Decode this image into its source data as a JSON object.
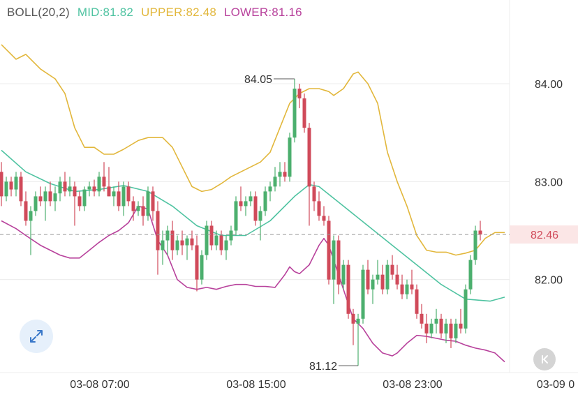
{
  "legend": {
    "name": "BOLL(20,2)",
    "mid_label": "MID:81.82",
    "upper_label": "UPPER:82.48",
    "lower_label": "LOWER:81.16"
  },
  "colors": {
    "up": "#4caf6e",
    "down": "#d04a5a",
    "mid": "#4fc3a1",
    "upper": "#e2b73c",
    "lower": "#b8429c",
    "grid": "#ececec",
    "axis_text": "#333333",
    "price_tag_bg": "#fbe6e6",
    "price_tag_text": "#d04a5a"
  },
  "y_axis": {
    "ticks": [
      "84.00",
      "83.00",
      "82.00"
    ]
  },
  "x_axis": {
    "ticks": [
      "03-08 07:00",
      "03-08 15:00",
      "03-08 23:00",
      "03-09 0"
    ]
  },
  "current_price": "82.46",
  "annotations": {
    "high": "84.05",
    "low": "81.12"
  },
  "chart_data": {
    "type": "candlestick",
    "title": "",
    "legend": [
      "BOLL(20,2)",
      "MID:81.82",
      "UPPER:82.48",
      "LOWER:81.16"
    ],
    "x_ticks": [
      "03-08 07:00",
      "03-08 15:00",
      "03-08 23:00",
      "03-09 0"
    ],
    "y_ticks": [
      84.0,
      83.0,
      82.0
    ],
    "ylim": [
      81.05,
      84.57
    ],
    "current_price": 82.46,
    "high_marker": 84.05,
    "low_marker": 81.12,
    "candles": [
      [
        83.1,
        83.2,
        82.75,
        82.85
      ],
      [
        82.85,
        83.05,
        82.8,
        83.0
      ],
      [
        83.0,
        83.05,
        82.85,
        82.92
      ],
      [
        82.92,
        83.1,
        82.85,
        83.05
      ],
      [
        83.05,
        83.1,
        82.75,
        82.8
      ],
      [
        82.8,
        82.9,
        82.55,
        82.6
      ],
      [
        82.6,
        82.75,
        82.25,
        82.7
      ],
      [
        82.7,
        82.9,
        82.65,
        82.85
      ],
      [
        82.85,
        82.95,
        82.75,
        82.8
      ],
      [
        82.8,
        82.95,
        82.6,
        82.9
      ],
      [
        82.9,
        83.0,
        82.75,
        82.8
      ],
      [
        82.8,
        82.95,
        82.7,
        82.88
      ],
      [
        82.88,
        83.05,
        82.8,
        83.0
      ],
      [
        83.0,
        83.1,
        82.85,
        82.9
      ],
      [
        82.9,
        83.05,
        82.85,
        82.95
      ],
      [
        82.95,
        83.0,
        82.55,
        82.85
      ],
      [
        82.85,
        82.9,
        82.7,
        82.75
      ],
      [
        82.75,
        82.95,
        82.7,
        82.92
      ],
      [
        82.92,
        83.0,
        82.85,
        82.95
      ],
      [
        82.95,
        83.02,
        82.85,
        82.9
      ],
      [
        82.9,
        83.1,
        82.85,
        83.05
      ],
      [
        83.05,
        83.2,
        82.9,
        82.95
      ],
      [
        82.95,
        83.15,
        82.85,
        82.85
      ],
      [
        82.85,
        82.95,
        82.75,
        82.9
      ],
      [
        82.9,
        83.0,
        82.7,
        82.75
      ],
      [
        82.75,
        83.0,
        82.65,
        82.95
      ],
      [
        82.95,
        83.0,
        82.75,
        82.8
      ],
      [
        82.8,
        82.85,
        82.6,
        82.7
      ],
      [
        82.7,
        82.8,
        82.65,
        82.75
      ],
      [
        82.75,
        82.85,
        82.55,
        82.65
      ],
      [
        82.65,
        82.95,
        82.6,
        82.9
      ],
      [
        82.9,
        82.95,
        82.6,
        82.7
      ],
      [
        82.7,
        82.8,
        82.05,
        82.3
      ],
      [
        82.3,
        82.5,
        82.15,
        82.4
      ],
      [
        82.4,
        82.55,
        82.25,
        82.5
      ],
      [
        82.5,
        82.6,
        82.2,
        82.3
      ],
      [
        82.3,
        82.45,
        82.25,
        82.4
      ],
      [
        82.4,
        82.5,
        82.25,
        82.35
      ],
      [
        82.35,
        82.45,
        82.2,
        82.42
      ],
      [
        82.42,
        82.5,
        82.3,
        82.35
      ],
      [
        82.35,
        82.45,
        81.88,
        82.0
      ],
      [
        82.0,
        82.3,
        81.95,
        82.25
      ],
      [
        82.25,
        82.6,
        82.2,
        82.55
      ],
      [
        82.55,
        82.6,
        82.3,
        82.35
      ],
      [
        82.35,
        82.5,
        82.3,
        82.45
      ],
      [
        82.45,
        82.5,
        82.25,
        82.3
      ],
      [
        82.3,
        82.45,
        82.2,
        82.4
      ],
      [
        82.4,
        82.55,
        82.35,
        82.5
      ],
      [
        82.5,
        82.85,
        82.45,
        82.8
      ],
      [
        82.8,
        82.95,
        82.7,
        82.75
      ],
      [
        82.75,
        82.85,
        82.65,
        82.8
      ],
      [
        82.8,
        82.9,
        82.75,
        82.85
      ],
      [
        82.85,
        82.9,
        82.55,
        82.6
      ],
      [
        82.6,
        82.75,
        82.4,
        82.7
      ],
      [
        82.7,
        82.95,
        82.65,
        82.9
      ],
      [
        82.9,
        83.0,
        82.8,
        82.95
      ],
      [
        82.95,
        83.15,
        82.9,
        83.05
      ],
      [
        83.05,
        83.2,
        82.95,
        83.1
      ],
      [
        83.1,
        83.2,
        83.0,
        83.05
      ],
      [
        83.05,
        83.5,
        83.0,
        83.45
      ],
      [
        83.45,
        84.05,
        83.4,
        83.95
      ],
      [
        83.95,
        84.0,
        83.75,
        83.85
      ],
      [
        83.85,
        83.9,
        83.5,
        83.55
      ],
      [
        83.55,
        83.6,
        82.55,
        82.95
      ],
      [
        82.95,
        83.0,
        82.7,
        82.8
      ],
      [
        82.8,
        82.9,
        82.6,
        82.65
      ],
      [
        82.65,
        82.75,
        82.55,
        82.6
      ],
      [
        82.6,
        82.65,
        81.95,
        82.0
      ],
      [
        82.0,
        82.45,
        81.75,
        82.4
      ],
      [
        82.4,
        82.45,
        81.85,
        81.95
      ],
      [
        81.95,
        82.2,
        81.9,
        82.15
      ],
      [
        82.15,
        82.2,
        81.6,
        81.65
      ],
      [
        81.65,
        81.7,
        81.33,
        81.55
      ],
      [
        81.55,
        81.65,
        81.12,
        81.6
      ],
      [
        81.6,
        82.15,
        81.55,
        82.1
      ],
      [
        82.1,
        82.2,
        81.85,
        81.9
      ],
      [
        81.9,
        82.05,
        81.75,
        82.0
      ],
      [
        82.0,
        82.2,
        81.95,
        82.05
      ],
      [
        82.05,
        82.15,
        81.85,
        81.9
      ],
      [
        81.9,
        82.2,
        81.85,
        82.15
      ],
      [
        82.15,
        82.25,
        82.0,
        82.05
      ],
      [
        82.05,
        82.15,
        81.9,
        81.95
      ],
      [
        81.95,
        82.05,
        81.8,
        81.85
      ],
      [
        81.85,
        82.0,
        81.8,
        81.95
      ],
      [
        81.95,
        82.1,
        81.85,
        81.9
      ],
      [
        81.9,
        81.95,
        81.6,
        81.65
      ],
      [
        81.65,
        81.75,
        81.5,
        81.55
      ],
      [
        81.55,
        81.65,
        81.35,
        81.45
      ],
      [
        81.45,
        81.6,
        81.4,
        81.55
      ],
      [
        81.55,
        81.7,
        81.45,
        81.6
      ],
      [
        81.6,
        81.65,
        81.4,
        81.45
      ],
      [
        81.45,
        81.6,
        81.35,
        81.55
      ],
      [
        81.55,
        81.6,
        81.3,
        81.4
      ],
      [
        81.4,
        81.6,
        81.35,
        81.55
      ],
      [
        81.55,
        81.7,
        81.45,
        81.5
      ],
      [
        81.5,
        81.95,
        81.45,
        81.9
      ],
      [
        81.9,
        82.25,
        81.85,
        82.2
      ],
      [
        82.2,
        82.55,
        82.15,
        82.5
      ],
      [
        82.5,
        82.6,
        82.4,
        82.46
      ]
    ],
    "mid": [
      [
        0,
        83.32
      ],
      [
        5,
        83.1
      ],
      [
        10,
        82.98
      ],
      [
        15,
        82.9
      ],
      [
        20,
        82.92
      ],
      [
        25,
        82.96
      ],
      [
        30,
        82.9
      ],
      [
        35,
        82.75
      ],
      [
        40,
        82.55
      ],
      [
        45,
        82.45
      ],
      [
        50,
        82.45
      ],
      [
        55,
        82.6
      ],
      [
        60,
        82.85
      ],
      [
        63,
        82.97
      ],
      [
        65,
        82.95
      ],
      [
        70,
        82.75
      ],
      [
        75,
        82.55
      ],
      [
        80,
        82.35
      ],
      [
        85,
        82.15
      ],
      [
        90,
        81.95
      ],
      [
        95,
        81.8
      ],
      [
        100,
        81.78
      ],
      [
        103,
        81.82
      ]
    ],
    "upper": [
      [
        0,
        84.4
      ],
      [
        3,
        84.25
      ],
      [
        5,
        84.3
      ],
      [
        8,
        84.15
      ],
      [
        11,
        84.05
      ],
      [
        13,
        83.9
      ],
      [
        15,
        83.55
      ],
      [
        17,
        83.35
      ],
      [
        19,
        83.35
      ],
      [
        21,
        83.28
      ],
      [
        23,
        83.28
      ],
      [
        25,
        83.33
      ],
      [
        28,
        83.42
      ],
      [
        30,
        83.45
      ],
      [
        33,
        83.45
      ],
      [
        35,
        83.35
      ],
      [
        37,
        83.15
      ],
      [
        39,
        82.95
      ],
      [
        41,
        82.9
      ],
      [
        43,
        82.92
      ],
      [
        45,
        82.98
      ],
      [
        47,
        83.05
      ],
      [
        49,
        83.1
      ],
      [
        51,
        83.15
      ],
      [
        53,
        83.2
      ],
      [
        55,
        83.3
      ],
      [
        57,
        83.55
      ],
      [
        59,
        83.8
      ],
      [
        61,
        83.9
      ],
      [
        63,
        83.95
      ],
      [
        65,
        83.95
      ],
      [
        67,
        83.92
      ],
      [
        68,
        83.88
      ],
      [
        70,
        83.95
      ],
      [
        72,
        84.1
      ],
      [
        73,
        84.12
      ],
      [
        75,
        84.0
      ],
      [
        77,
        83.8
      ],
      [
        79,
        83.3
      ],
      [
        81,
        83.0
      ],
      [
        83,
        82.75
      ],
      [
        85,
        82.45
      ],
      [
        87,
        82.3
      ],
      [
        89,
        82.28
      ],
      [
        91,
        82.28
      ],
      [
        93,
        82.25
      ],
      [
        95,
        82.27
      ],
      [
        97,
        82.3
      ],
      [
        99,
        82.42
      ],
      [
        101,
        82.48
      ],
      [
        103,
        82.48
      ]
    ],
    "lower": [
      [
        0,
        82.6
      ],
      [
        3,
        82.52
      ],
      [
        5,
        82.45
      ],
      [
        8,
        82.35
      ],
      [
        10,
        82.3
      ],
      [
        12,
        82.25
      ],
      [
        14,
        82.22
      ],
      [
        16,
        82.22
      ],
      [
        18,
        82.3
      ],
      [
        20,
        82.38
      ],
      [
        22,
        82.45
      ],
      [
        24,
        82.5
      ],
      [
        26,
        82.58
      ],
      [
        28,
        82.75
      ],
      [
        30,
        82.72
      ],
      [
        32,
        82.4
      ],
      [
        34,
        82.25
      ],
      [
        36,
        82.0
      ],
      [
        38,
        81.92
      ],
      [
        40,
        81.9
      ],
      [
        42,
        81.92
      ],
      [
        44,
        81.9
      ],
      [
        46,
        81.93
      ],
      [
        48,
        81.95
      ],
      [
        50,
        81.95
      ],
      [
        52,
        81.93
      ],
      [
        54,
        81.93
      ],
      [
        56,
        81.92
      ],
      [
        58,
        82.05
      ],
      [
        59,
        82.13
      ],
      [
        60,
        82.08
      ],
      [
        61,
        82.06
      ],
      [
        63,
        82.15
      ],
      [
        65,
        82.35
      ],
      [
        66,
        82.42
      ],
      [
        67,
        82.35
      ],
      [
        68,
        82.2
      ],
      [
        70,
        81.9
      ],
      [
        72,
        81.6
      ],
      [
        74,
        81.5
      ],
      [
        76,
        81.35
      ],
      [
        78,
        81.25
      ],
      [
        80,
        81.22
      ],
      [
        81,
        81.25
      ],
      [
        83,
        81.35
      ],
      [
        85,
        81.43
      ],
      [
        87,
        81.42
      ],
      [
        89,
        81.4
      ],
      [
        91,
        81.38
      ],
      [
        93,
        81.37
      ],
      [
        95,
        81.33
      ],
      [
        97,
        81.3
      ],
      [
        99,
        81.28
      ],
      [
        101,
        81.25
      ],
      [
        103,
        81.16
      ]
    ]
  }
}
